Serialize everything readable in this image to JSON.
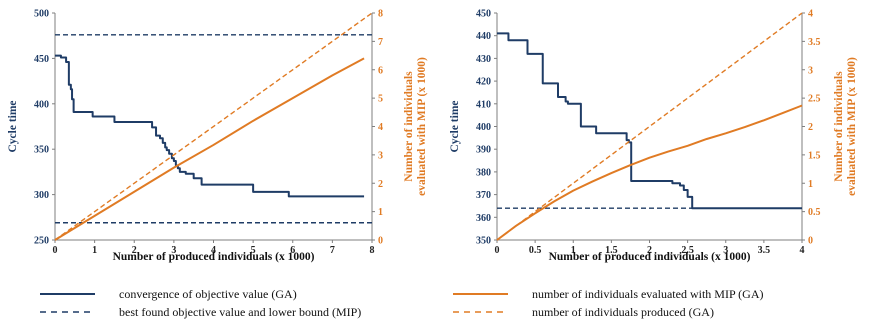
{
  "colors": {
    "blue": "#1f3c66",
    "orange": "#e07b24",
    "axis": "#7f7f7f"
  },
  "chart_data": [
    {
      "type": "line",
      "xlabel": "Number of produced individuals (x 1000)",
      "ylabel": "Cycle time",
      "y2label_lines": [
        "Number of individuals",
        "evaluated with MIP (x 1000)"
      ],
      "xlim": [
        0,
        8
      ],
      "ylim": [
        250,
        500
      ],
      "y2lim": [
        0,
        8
      ],
      "xticks": [
        "0",
        "1",
        "2",
        "3",
        "4",
        "5",
        "6",
        "7",
        "8"
      ],
      "yticks": [
        "250",
        "300",
        "350",
        "400",
        "450",
        "500"
      ],
      "y2ticks": [
        "0",
        "1",
        "2",
        "3",
        "4",
        "5",
        "6",
        "7",
        "8"
      ],
      "series": [
        {
          "key": "ga_convergence",
          "axis": "y",
          "dash": false,
          "color": "#1f3c66",
          "step": true,
          "x": [
            0,
            0.08,
            0.15,
            0.28,
            0.35,
            0.4,
            0.43,
            0.47,
            0.8,
            0.95,
            1.1,
            1.5,
            2.0,
            2.3,
            2.45,
            2.5,
            2.55,
            2.65,
            2.72,
            2.78,
            2.82,
            2.88,
            2.95,
            3.0,
            3.05,
            3.1,
            3.15,
            3.3,
            3.5,
            3.7,
            4.5,
            5.0,
            5.9,
            7.8
          ],
          "y": [
            453,
            453,
            451,
            446,
            421,
            416,
            405,
            391,
            391,
            386,
            386,
            380,
            380,
            380,
            374,
            374,
            365,
            362,
            357,
            352,
            349,
            345,
            340,
            337,
            332,
            329,
            325,
            323,
            318,
            311,
            311,
            303,
            298,
            298
          ]
        },
        {
          "key": "mip_bound",
          "axis": "y",
          "dash": true,
          "color": "#1f3c66",
          "x": [
            0,
            8
          ],
          "y": [
            269,
            269
          ]
        },
        {
          "key": "ga_best",
          "axis": "y",
          "dash": true,
          "color": "#1f3c66",
          "x": [
            0,
            8
          ],
          "y": [
            476,
            476
          ]
        },
        {
          "key": "mip_evaluated",
          "axis": "y2",
          "dash": false,
          "color": "#e07b24",
          "x": [
            0,
            1,
            2,
            3,
            4,
            5,
            6,
            7,
            7.8
          ],
          "y": [
            0,
            0.85,
            1.7,
            2.55,
            3.35,
            4.2,
            5.0,
            5.8,
            6.4
          ]
        },
        {
          "key": "produced",
          "axis": "y2",
          "dash": true,
          "color": "#e07b24",
          "x": [
            0,
            8
          ],
          "y": [
            0,
            8
          ]
        }
      ]
    },
    {
      "type": "line",
      "xlabel": "Number of produced individuals (x 1000)",
      "ylabel": "Cycle time",
      "y2label_lines": [
        "Number of individuals",
        "evaluated with MIP (x 1000)"
      ],
      "xlim": [
        0,
        4
      ],
      "ylim": [
        350,
        450
      ],
      "y2lim": [
        0,
        4
      ],
      "xticks": [
        "0",
        "0.5",
        "1",
        "1.5",
        "2",
        "2.5",
        "3",
        "3.5",
        "4"
      ],
      "yticks": [
        "350",
        "360",
        "370",
        "380",
        "390",
        "400",
        "410",
        "420",
        "430",
        "440",
        "450"
      ],
      "y2ticks": [
        "0",
        "0.5",
        "1",
        "1.5",
        "2",
        "2.5",
        "3",
        "3.5",
        "4"
      ],
      "series": [
        {
          "key": "ga_convergence",
          "axis": "y",
          "dash": false,
          "color": "#1f3c66",
          "step": true,
          "x": [
            0,
            0.1,
            0.15,
            0.3,
            0.4,
            0.55,
            0.6,
            0.7,
            0.8,
            0.85,
            0.9,
            0.93,
            1.1,
            1.3,
            1.6,
            1.7,
            1.73,
            1.76,
            2.0,
            2.3,
            2.4,
            2.45,
            2.5,
            2.56,
            2.6,
            4.0
          ],
          "y": [
            441,
            441,
            438,
            438,
            432,
            432,
            419,
            419,
            413,
            413,
            411,
            410,
            400,
            397,
            397,
            394,
            393,
            376,
            376,
            375,
            374,
            372,
            369,
            364,
            364,
            364
          ]
        },
        {
          "key": "mip_bound",
          "axis": "y",
          "dash": true,
          "color": "#1f3c66",
          "x": [
            0,
            4
          ],
          "y": [
            364,
            364
          ]
        },
        {
          "key": "mip_evaluated",
          "axis": "y2",
          "dash": false,
          "color": "#e07b24",
          "x": [
            0,
            0.25,
            0.5,
            0.75,
            1.0,
            1.25,
            1.5,
            1.75,
            2.0,
            2.25,
            2.5,
            2.75,
            3.0,
            3.25,
            3.5,
            3.75,
            4.0
          ],
          "y": [
            0,
            0.25,
            0.47,
            0.68,
            0.87,
            1.03,
            1.18,
            1.32,
            1.45,
            1.56,
            1.66,
            1.78,
            1.88,
            1.99,
            2.11,
            2.24,
            2.37
          ]
        },
        {
          "key": "produced",
          "axis": "y2",
          "dash": true,
          "color": "#e07b24",
          "x": [
            0,
            4
          ],
          "y": [
            0,
            4
          ]
        }
      ]
    }
  ],
  "legend": [
    {
      "key": "ga_convergence",
      "label": "convergence of objective value (GA)",
      "color": "#1f3c66",
      "dash": false
    },
    {
      "key": "mip_evaluated",
      "label": "number of individuals evaluated with MIP (GA)",
      "color": "#e07b24",
      "dash": false
    },
    {
      "key": "mip_bound",
      "label": "best found objective value and lower bound (MIP)",
      "color": "#1f3c66",
      "dash": true
    },
    {
      "key": "produced",
      "label": "number of individuals produced (GA)",
      "color": "#e07b24",
      "dash": true
    }
  ]
}
